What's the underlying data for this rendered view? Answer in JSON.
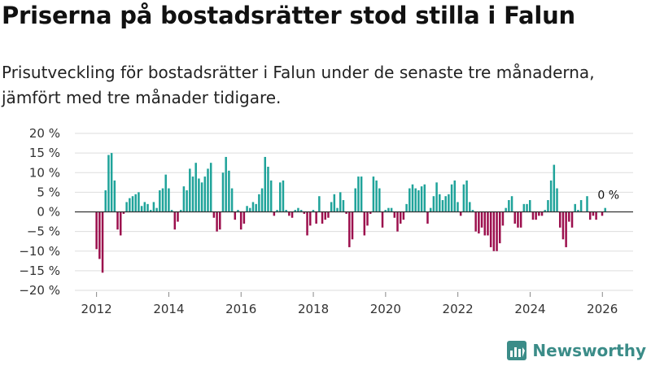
{
  "header": {
    "title": "Priserna på bostadsrätter stod stilla i Falun",
    "subtitle": "Prisutveckling för bostadsrätter i Falun under de senaste tre månaderna, jämfört med tre månader tidigare."
  },
  "brand": {
    "name": "Newsworthy",
    "icon": "newsworthy-logo-icon"
  },
  "colors": {
    "positive": "#1fa39a",
    "negative": "#9c0f4d",
    "grid": "#dddddd",
    "zero_line": "#333333",
    "axis_text": "#333333"
  },
  "chart_data": {
    "type": "bar",
    "title": "Priserna på bostadsrätter stod stilla i Falun",
    "xlabel": "",
    "ylabel": "",
    "ylim": [
      -20,
      20
    ],
    "yticks": [
      -20,
      -15,
      -10,
      -5,
      0,
      5,
      10,
      15,
      20
    ],
    "ytick_labels": [
      "−20 %",
      "−15 %",
      "−10 %",
      "−5 %",
      "0 %",
      "5 %",
      "10 %",
      "15 %",
      "20 %"
    ],
    "xlim": [
      2011.4,
      2026.85
    ],
    "xticks": [
      2012,
      2014,
      2016,
      2018,
      2020,
      2022,
      2024,
      2026
    ],
    "xtick_labels": [
      "2012",
      "2014",
      "2016",
      "2018",
      "2020",
      "2022",
      "2024",
      "2026"
    ],
    "x_start": 2012.0,
    "x_step": 0.0833,
    "grid": true,
    "annotation": {
      "text": "0 %",
      "value": 0
    },
    "values": [
      -9.5,
      -12,
      -15.5,
      5.5,
      14.5,
      15,
      8,
      -4.5,
      -6,
      -0.5,
      2.5,
      3.5,
      4,
      4.5,
      5,
      1.5,
      2.5,
      2,
      0.5,
      2.5,
      1,
      5.5,
      6,
      9.5,
      6,
      0.5,
      -4.5,
      -2.5,
      0.5,
      6.5,
      5.5,
      11,
      9,
      12.5,
      8.5,
      7.5,
      9,
      11,
      12.5,
      -1.5,
      -5,
      -4.5,
      10,
      14,
      10.5,
      6,
      -2,
      0.5,
      -4.5,
      -3,
      1.5,
      1,
      2.5,
      2,
      4.5,
      6,
      14,
      11.5,
      8,
      -1,
      0.5,
      7.5,
      8,
      0.5,
      -1,
      -1.5,
      0.5,
      1,
      0.5,
      -0.5,
      -6,
      -3.5,
      0.5,
      -3,
      4,
      -3,
      -2,
      -1.5,
      2.5,
      4.5,
      1,
      5,
      3,
      -0.5,
      -9,
      -7,
      6,
      9,
      9,
      -6,
      -3.5,
      -0.5,
      9,
      8,
      6,
      -4,
      0.5,
      1,
      1,
      -1.5,
      -5,
      -3,
      -2,
      2,
      6,
      7,
      6,
      5.5,
      6.5,
      7,
      -3,
      1,
      4,
      7.5,
      4.5,
      3,
      4,
      4.5,
      7,
      8,
      2.5,
      -1,
      7,
      8,
      2.5,
      0.5,
      -5,
      -5.5,
      -4,
      -6,
      -6,
      -9,
      -10,
      -10,
      -8,
      -3.5,
      1,
      3,
      4,
      -3,
      -4,
      -4,
      2,
      2,
      3,
      -2,
      -2,
      -1,
      -1,
      0.5,
      3,
      8,
      12,
      6,
      -4,
      -7,
      -9,
      -2.5,
      -4,
      2,
      0.5,
      3,
      0,
      4,
      -2,
      -1,
      -2,
      0,
      -1,
      1
    ]
  }
}
